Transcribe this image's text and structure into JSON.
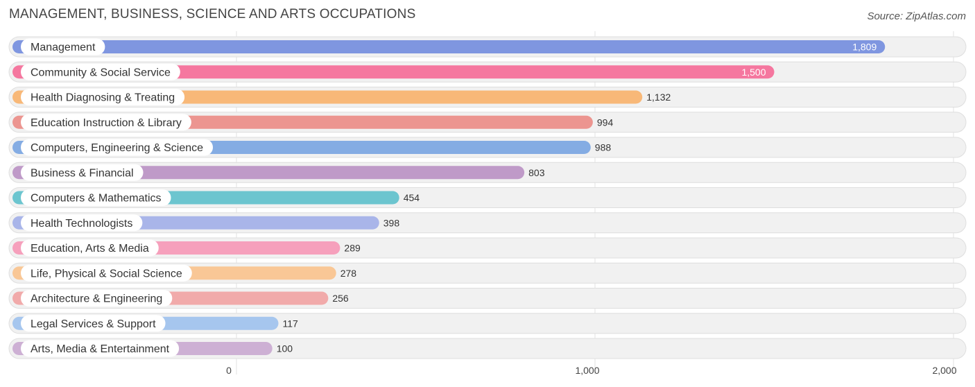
{
  "header": {
    "title": "MANAGEMENT, BUSINESS, SCIENCE AND ARTS OCCUPATIONS",
    "source": "Source: ZipAtlas.com"
  },
  "chart_data": {
    "type": "bar",
    "orientation": "horizontal",
    "title": "MANAGEMENT, BUSINESS, SCIENCE AND ARTS OCCUPATIONS",
    "xlabel": "",
    "ylabel": "",
    "xlim": [
      0,
      2000
    ],
    "grid": true,
    "ticks": [
      {
        "value": 0,
        "label": "0"
      },
      {
        "value": 1000,
        "label": "1,000"
      },
      {
        "value": 2000,
        "label": "2,000"
      }
    ],
    "categories": [
      "Management",
      "Community & Social Service",
      "Health Diagnosing & Treating",
      "Education Instruction & Library",
      "Computers, Engineering & Science",
      "Business & Financial",
      "Computers & Mathematics",
      "Health Technologists",
      "Education, Arts & Media",
      "Life, Physical & Social Science",
      "Architecture & Engineering",
      "Legal Services & Support",
      "Arts, Media & Entertainment"
    ],
    "values": [
      1809,
      1500,
      1132,
      994,
      988,
      803,
      454,
      398,
      289,
      278,
      256,
      117,
      100
    ],
    "value_labels": [
      "1,809",
      "1,500",
      "1,132",
      "994",
      "988",
      "803",
      "454",
      "398",
      "289",
      "278",
      "256",
      "117",
      "100"
    ],
    "colors": [
      "#7f96e0",
      "#f5779f",
      "#f8b878",
      "#ec9590",
      "#84ace3",
      "#bf9ac8",
      "#6cc5cf",
      "#a9b5e9",
      "#f6a0bc",
      "#f9c796",
      "#f1aaaa",
      "#a6c6ee",
      "#cdb0d4"
    ]
  }
}
